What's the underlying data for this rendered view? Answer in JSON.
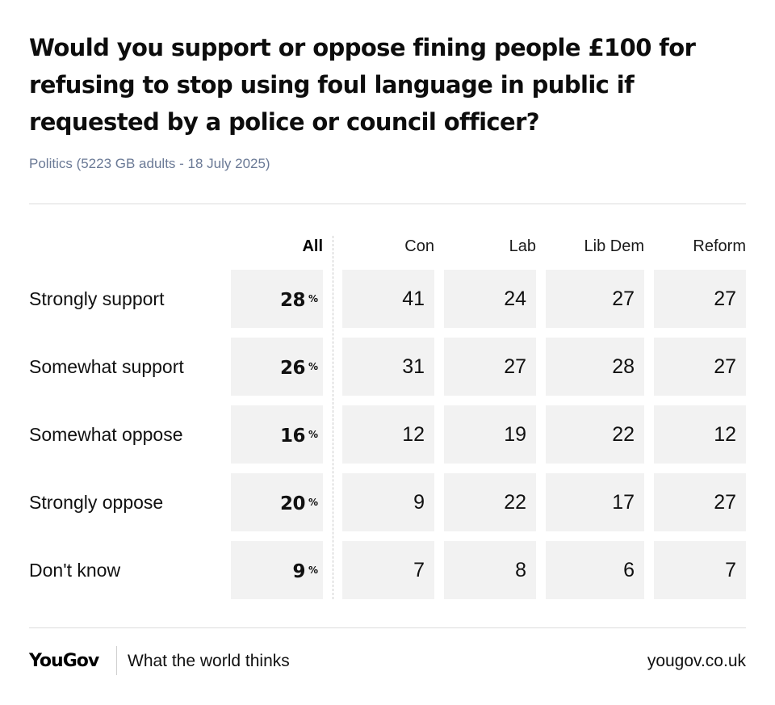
{
  "header": {
    "title": "Would you support or oppose fining people £100 for refusing to stop using foul language in public if requested by a police or council officer?",
    "subtitle": "Politics (5223 GB adults - 18 July 2025)"
  },
  "chart_data": {
    "type": "table",
    "title": "Would you support or oppose fining people £100 for refusing to stop using foul language in public if requested by a police or council officer?",
    "subtitle": "Politics (5223 GB adults - 18 July 2025)",
    "columns": [
      "All",
      "Con",
      "Lab",
      "Lib Dem",
      "Reform"
    ],
    "unit": "%",
    "rows": [
      {
        "label": "Strongly support",
        "values": [
          28,
          41,
          24,
          27,
          27
        ]
      },
      {
        "label": "Somewhat support",
        "values": [
          26,
          31,
          27,
          28,
          27
        ]
      },
      {
        "label": "Somewhat oppose",
        "values": [
          16,
          12,
          19,
          22,
          12
        ]
      },
      {
        "label": "Strongly oppose",
        "values": [
          20,
          9,
          22,
          17,
          27
        ]
      },
      {
        "label": "Don't know",
        "values": [
          9,
          7,
          8,
          6,
          7
        ]
      }
    ]
  },
  "footer": {
    "brand": "YouGov",
    "tagline": "What the world thinks",
    "url": "yougov.co.uk"
  }
}
